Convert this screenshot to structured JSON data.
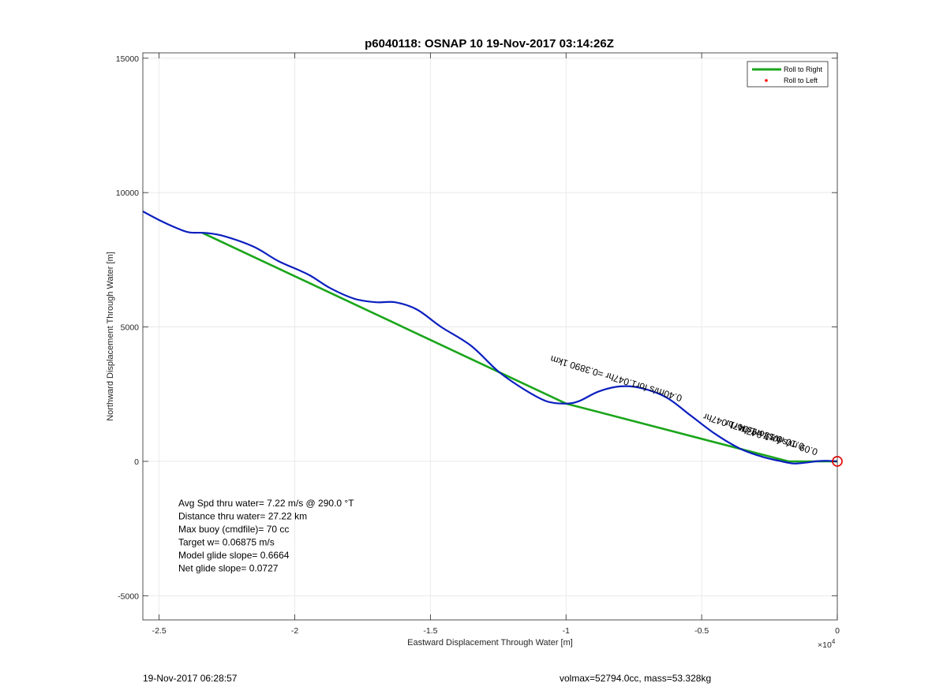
{
  "chart_data": {
    "type": "line",
    "title": "p6040118: OSNAP 10 19-Nov-2017 03:14:26Z",
    "xlabel": "Eastward Displacement Through Water [m]",
    "ylabel": "Northward Displacement Through Water [m]",
    "x_exponent_label": "×10",
    "x_exponent_power": "4",
    "xlim": [
      -25600,
      0
    ],
    "ylim": [
      -5900,
      15200
    ],
    "xticks": [
      -25000,
      -20000,
      -15000,
      -10000,
      -5000,
      0
    ],
    "xtick_labels": [
      "-2.5",
      "-2",
      "-1.5",
      "-1",
      "-0.5",
      "0"
    ],
    "yticks": [
      -5000,
      0,
      5000,
      10000,
      15000
    ],
    "ytick_labels": [
      "-5000",
      "0",
      "5000",
      "10000",
      "15000"
    ],
    "grid": true,
    "legend_position": "top-right",
    "legend": [
      {
        "label": "Roll to Right",
        "color": "#1aa51a",
        "style": "line"
      },
      {
        "label": "Roll to Left",
        "color": "#ff0000",
        "style": "dot"
      }
    ],
    "series": [
      {
        "name": "Roll to Right",
        "color": "#1aa51a",
        "points": [
          [
            -23400,
            8500
          ],
          [
            -10000,
            2150
          ],
          [
            -1800,
            0
          ],
          [
            0,
            0
          ]
        ]
      },
      {
        "color": "#0b1fbf",
        "points": [
          [
            -25600,
            9300
          ],
          [
            -25000,
            8980
          ],
          [
            -24400,
            8700
          ],
          [
            -23900,
            8520
          ],
          [
            -23300,
            8500
          ],
          [
            -22600,
            8380
          ],
          [
            -21500,
            7980
          ],
          [
            -20600,
            7450
          ],
          [
            -19500,
            6950
          ],
          [
            -18700,
            6450
          ],
          [
            -17800,
            6050
          ],
          [
            -17000,
            5920
          ],
          [
            -16300,
            5920
          ],
          [
            -15500,
            5650
          ],
          [
            -14600,
            5000
          ],
          [
            -13500,
            4300
          ],
          [
            -12500,
            3350
          ],
          [
            -11500,
            2650
          ],
          [
            -10700,
            2230
          ],
          [
            -10000,
            2150
          ],
          [
            -9500,
            2250
          ],
          [
            -8800,
            2600
          ],
          [
            -8000,
            2790
          ],
          [
            -7200,
            2720
          ],
          [
            -6300,
            2380
          ],
          [
            -5400,
            1700
          ],
          [
            -4500,
            1020
          ],
          [
            -3600,
            480
          ],
          [
            -2800,
            180
          ],
          [
            -2100,
            10
          ],
          [
            -1600,
            -80
          ],
          [
            -1100,
            -40
          ],
          [
            -700,
            10
          ],
          [
            -300,
            20
          ],
          [
            -100,
            5
          ],
          [
            0,
            0
          ]
        ]
      }
    ],
    "end_marker": {
      "x": 0,
      "y": 0,
      "color": "#e00000"
    },
    "annotations": [
      {
        "text": "0.40m/s for1.047hr =0.3890 1km",
        "x": -5700,
        "y": 2450,
        "angle": 17,
        "color": "#000000"
      },
      {
        "text": "0.15 m/s for1.047hr",
        "x": -2000,
        "y": 900,
        "angle": 17,
        "color": "#000000"
      },
      {
        "text": "0.10 m/s for1.047hr",
        "x": -1200,
        "y": 650,
        "angle": 17,
        "color": "#000000"
      },
      {
        "text": "0.09 m/s for1.047hr",
        "x": -700,
        "y": 450,
        "angle": 17,
        "color": "#000000"
      }
    ],
    "stats": [
      "Avg Spd thru water=  7.22 m/s @ 290.0 °T",
      "Distance thru water= 27.22 km",
      "Max buoy (cmdfile)= 70 cc",
      "Target w= 0.06875 m/s",
      "Model glide slope= 0.6664",
      "Net glide slope= 0.0727"
    ]
  },
  "footer": {
    "left": "19-Nov-2017 06:28:57",
    "right": "volmax=52794.0cc, mass=53.328kg"
  }
}
